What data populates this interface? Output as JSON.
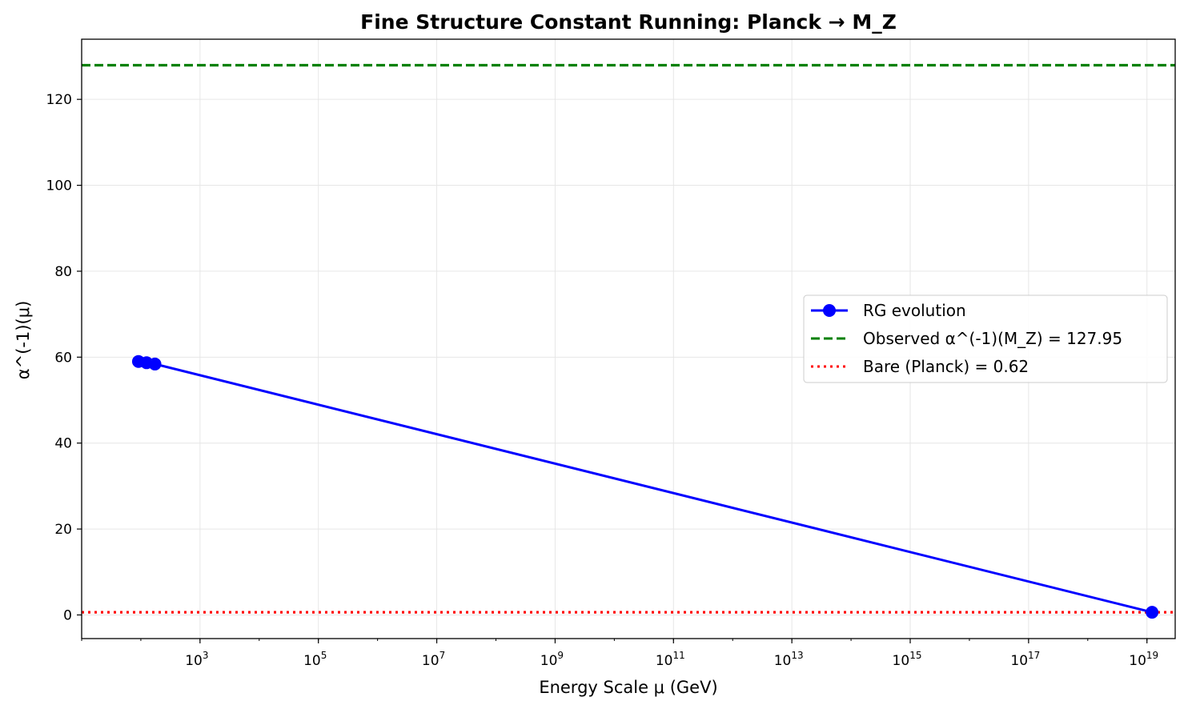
{
  "chart_data": {
    "type": "line",
    "title": "Fine Structure Constant Running: Planck → M_Z",
    "xlabel": "Energy Scale μ (GeV)",
    "ylabel": "α^(-1)(μ)",
    "xscale": "log",
    "xlim": [
      10.0,
      3e+19
    ],
    "ylim": [
      -5.5,
      134
    ],
    "grid": true,
    "legend_position": "center-right",
    "x_ticks": [
      {
        "base": "10",
        "exp": "3",
        "value": 1000.0
      },
      {
        "base": "10",
        "exp": "5",
        "value": 100000.0
      },
      {
        "base": "10",
        "exp": "7",
        "value": 10000000.0
      },
      {
        "base": "10",
        "exp": "9",
        "value": 1000000000.0
      },
      {
        "base": "10",
        "exp": "11",
        "value": 100000000000.0
      },
      {
        "base": "10",
        "exp": "13",
        "value": 10000000000000.0
      },
      {
        "base": "10",
        "exp": "15",
        "value": 1000000000000000.0
      },
      {
        "base": "10",
        "exp": "17",
        "value": 1e+17
      },
      {
        "base": "10",
        "exp": "19",
        "value": 1e+19
      }
    ],
    "y_ticks": [
      "0",
      "20",
      "40",
      "60",
      "80",
      "100",
      "120"
    ],
    "series": [
      {
        "name": "RG evolution",
        "color": "#0000ff",
        "marker": "circle",
        "x": [
          91.19,
          125,
          173,
          1.22e+19
        ],
        "y": [
          59.0,
          58.7,
          58.4,
          0.62
        ]
      }
    ],
    "reference_lines": [
      {
        "name": "Observed α^(-1)(M_Z) = 127.95",
        "y": 127.95,
        "color": "#008000",
        "style": "dashed"
      },
      {
        "name": "Bare (Planck) = 0.62",
        "y": 0.62,
        "color": "#ff0000",
        "style": "dotted"
      }
    ]
  }
}
